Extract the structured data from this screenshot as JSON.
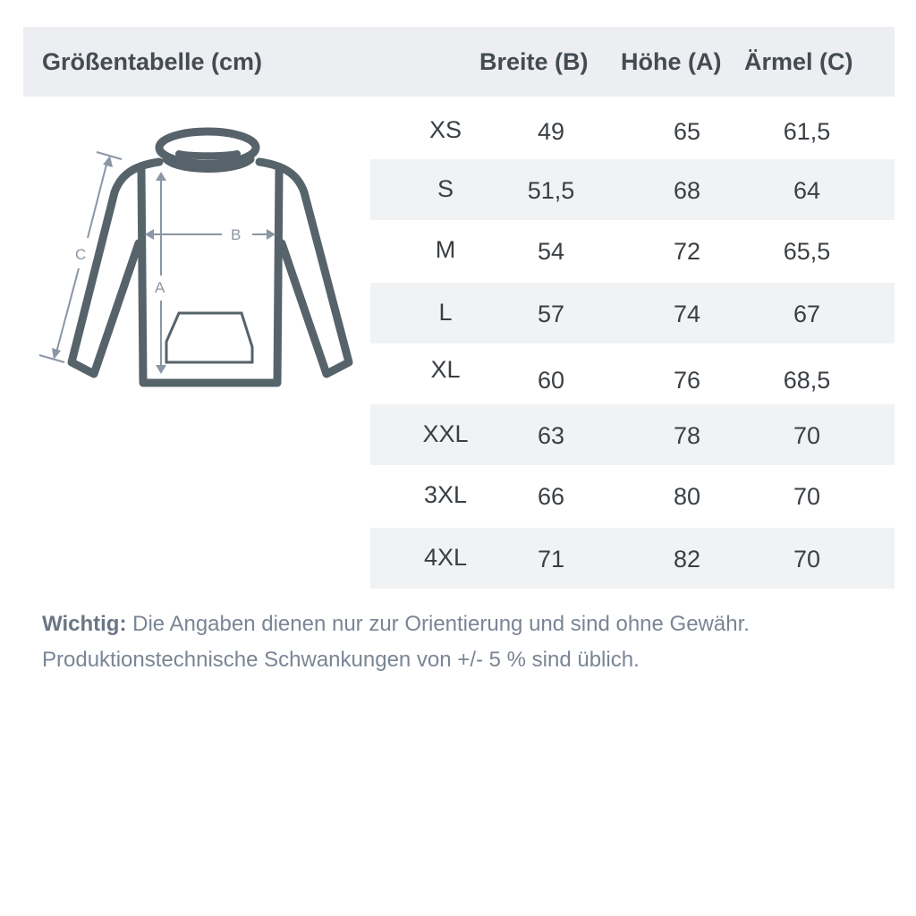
{
  "header": {
    "title": "Größentabelle (cm)",
    "col_b": "Breite (B)",
    "col_a": "Höhe (A)",
    "col_c": "Ärmel (C)"
  },
  "diagram": {
    "label_a": "A",
    "label_b": "B",
    "label_c": "C",
    "outline_color": "#56636a",
    "arrow_color": "#8a96a3"
  },
  "rows": [
    {
      "size": "XS",
      "b": "49",
      "a": "65",
      "c": "61,5"
    },
    {
      "size": "S",
      "b": "51,5",
      "a": "68",
      "c": "64"
    },
    {
      "size": "M",
      "b": "54",
      "a": "72",
      "c": "65,5"
    },
    {
      "size": "L",
      "b": "57",
      "a": "74",
      "c": "67"
    },
    {
      "size": "XL",
      "b": "60",
      "a": "76",
      "c": "68,5"
    },
    {
      "size": "XXL",
      "b": "63",
      "a": "78",
      "c": "70"
    },
    {
      "size": "3XL",
      "b": "66",
      "a": "80",
      "c": "70"
    },
    {
      "size": "4XL",
      "b": "71",
      "a": "82",
      "c": "70"
    }
  ],
  "note": {
    "bold": "Wichtig:",
    "line1": "Die Angaben dienen nur zur Orientierung und sind ohne Gewähr.",
    "line2": "Produktionstechnische Schwankungen von +/- 5 % sind üblich."
  }
}
